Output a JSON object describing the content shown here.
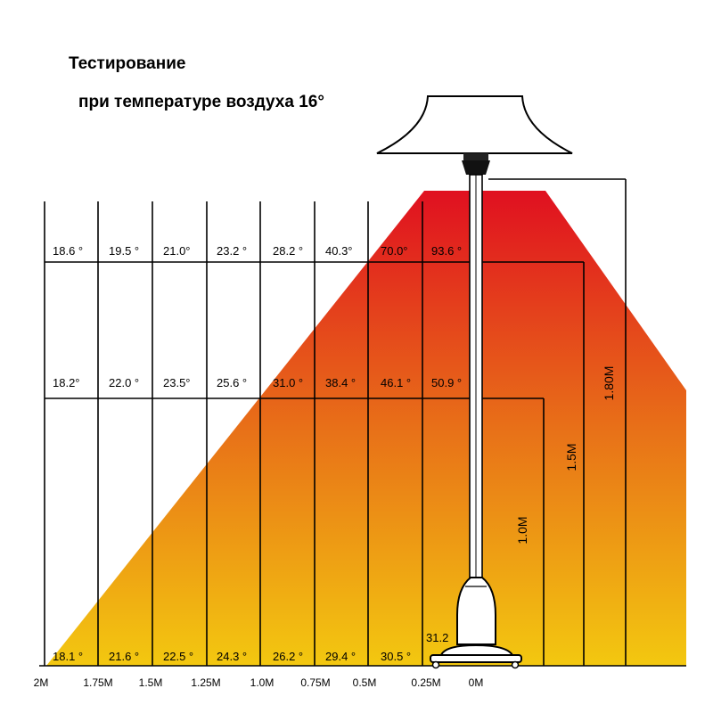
{
  "title_line1": "Тестирование",
  "title_line2": "при температуре воздуха 16°",
  "distances": [
    "2M",
    "1.75M",
    "1.5M",
    "1.25M",
    "1.0M",
    "0.75M",
    "0.5M",
    "0.25M",
    "0M"
  ],
  "heights": [
    "1.80M",
    "1.5M",
    "1.0M"
  ],
  "readings": {
    "row_top": [
      "18.6 °",
      "19.5 °",
      "21.0°",
      "23.2 °",
      "28.2 °",
      "40.3°",
      "70.0°",
      "93.6 °"
    ],
    "row_mid": [
      "18.2°",
      "22.0 °",
      "23.5°",
      "25.6 °",
      "31.0 °",
      "38.4 °",
      "46.1 °",
      "50.9 °"
    ],
    "row_bottom": [
      "18.1 °",
      "21.6 °",
      "22.5 °",
      "24.3 °",
      "26.2 °",
      "29.4 °",
      "30.5 °",
      "31.2"
    ]
  },
  "gradient_colors": {
    "top": "#e01020",
    "middle": "#e87018",
    "bottom": "#f3c810"
  }
}
